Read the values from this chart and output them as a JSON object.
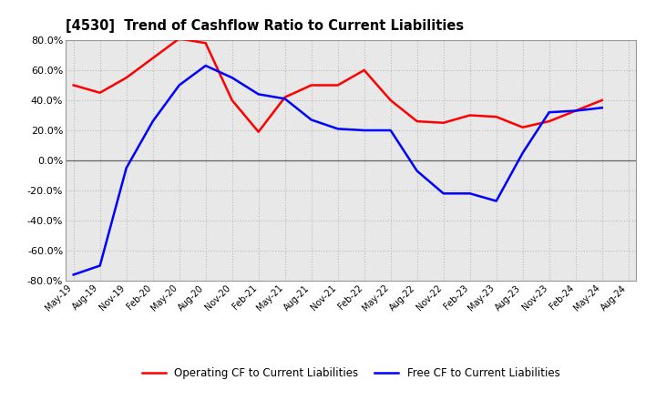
{
  "title": "[4530]  Trend of Cashflow Ratio to Current Liabilities",
  "x_labels": [
    "May-19",
    "Aug-19",
    "Nov-19",
    "Feb-20",
    "May-20",
    "Aug-20",
    "Nov-20",
    "Feb-21",
    "May-21",
    "Aug-21",
    "Nov-21",
    "Feb-22",
    "May-22",
    "Aug-22",
    "Nov-22",
    "Feb-23",
    "May-23",
    "Aug-23",
    "Nov-23",
    "Feb-24",
    "May-24",
    "Aug-24"
  ],
  "operating_cf": [
    50.0,
    45.0,
    55.0,
    68.0,
    81.0,
    78.0,
    40.0,
    19.0,
    42.0,
    50.0,
    50.0,
    60.0,
    40.0,
    26.0,
    25.0,
    30.0,
    29.0,
    22.0,
    26.0,
    33.0,
    40.0,
    null
  ],
  "free_cf": [
    -76.0,
    -70.0,
    -5.0,
    26.0,
    50.0,
    63.0,
    55.0,
    44.0,
    41.0,
    27.0,
    21.0,
    20.0,
    20.0,
    -7.0,
    -22.0,
    -22.0,
    -27.0,
    5.0,
    32.0,
    33.0,
    35.0,
    null
  ],
  "operating_color": "#FF0000",
  "free_color": "#0000FF",
  "ylim": [
    -80.0,
    80.0
  ],
  "yticks": [
    -80.0,
    -60.0,
    -40.0,
    -20.0,
    0.0,
    20.0,
    40.0,
    60.0,
    80.0
  ],
  "background_color": "#FFFFFF",
  "plot_bg_color": "#E8E8E8",
  "grid_color": "#BBBBBB",
  "legend_op": "Operating CF to Current Liabilities",
  "legend_free": "Free CF to Current Liabilities",
  "fig_width": 7.2,
  "fig_height": 4.4,
  "dpi": 100
}
